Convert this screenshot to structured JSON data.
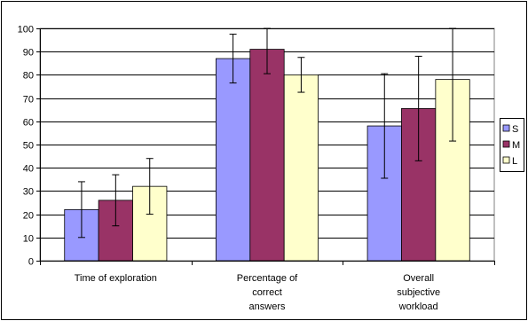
{
  "chart_data": {
    "type": "bar",
    "title": "",
    "xlabel": "",
    "ylabel": "",
    "ylim": [
      0,
      100
    ],
    "yticks": [
      0,
      10,
      20,
      30,
      40,
      50,
      60,
      70,
      80,
      90,
      100
    ],
    "grid": true,
    "legend_position": "right",
    "categories": [
      [
        "Time of exploration"
      ],
      [
        "Percentage of",
        "correct",
        "answers"
      ],
      [
        "Overall",
        "subjective",
        "workload"
      ]
    ],
    "series": [
      {
        "name": "S",
        "color": "#9999FF",
        "values": [
          22,
          87,
          58
        ],
        "errors": [
          12,
          10.5,
          22.5
        ]
      },
      {
        "name": "M",
        "color": "#993366",
        "values": [
          26,
          91,
          65.5
        ],
        "errors": [
          11,
          10.5,
          22.5
        ]
      },
      {
        "name": "L",
        "color": "#FFFFCC",
        "values": [
          32,
          80,
          78
        ],
        "errors": [
          12,
          7.5,
          26.5
        ]
      }
    ]
  }
}
